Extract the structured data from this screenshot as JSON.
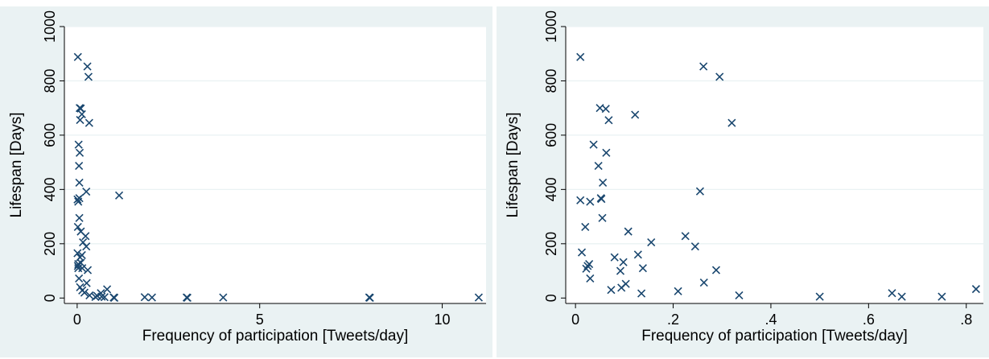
{
  "colors": {
    "background": "#eaf2f3",
    "plot": "#ffffff",
    "marker": "#1a476f",
    "grid": "#eaf2f3"
  },
  "chart_data": [
    {
      "type": "scatter",
      "marker": "x",
      "xlabel": "Frequency of participation [Tweets/day]",
      "ylabel": "Lifespan [Days]",
      "xlim": [
        -0.35,
        11.2
      ],
      "ylim": [
        -20,
        1000
      ],
      "xticks": [
        0,
        5,
        10
      ],
      "xtick_labels": [
        "0",
        "5",
        "10"
      ],
      "yticks": [
        0,
        200,
        400,
        600,
        800,
        1000
      ],
      "ytick_labels": [
        "0",
        "200",
        "400",
        "600",
        "800",
        "1000"
      ],
      "grid": true,
      "points": [
        {
          "x": 0.02,
          "y": 888
        },
        {
          "x": 0.28,
          "y": 853
        },
        {
          "x": 0.31,
          "y": 815
        },
        {
          "x": 0.07,
          "y": 700
        },
        {
          "x": 0.1,
          "y": 698
        },
        {
          "x": 0.13,
          "y": 677
        },
        {
          "x": 0.08,
          "y": 656
        },
        {
          "x": 0.33,
          "y": 645
        },
        {
          "x": 0.04,
          "y": 565
        },
        {
          "x": 0.07,
          "y": 535
        },
        {
          "x": 0.05,
          "y": 487
        },
        {
          "x": 0.06,
          "y": 425
        },
        {
          "x": 0.25,
          "y": 392
        },
        {
          "x": 1.15,
          "y": 378
        },
        {
          "x": 0.01,
          "y": 363
        },
        {
          "x": 0.06,
          "y": 368
        },
        {
          "x": 0.03,
          "y": 355
        },
        {
          "x": 0.06,
          "y": 295
        },
        {
          "x": 0.02,
          "y": 262
        },
        {
          "x": 0.1,
          "y": 245
        },
        {
          "x": 0.23,
          "y": 228
        },
        {
          "x": 0.16,
          "y": 205
        },
        {
          "x": 0.25,
          "y": 190
        },
        {
          "x": 0.01,
          "y": 165
        },
        {
          "x": 0.08,
          "y": 150
        },
        {
          "x": 0.13,
          "y": 158
        },
        {
          "x": 0.03,
          "y": 125
        },
        {
          "x": 0.02,
          "y": 118
        },
        {
          "x": 0.03,
          "y": 110
        },
        {
          "x": 0.14,
          "y": 110
        },
        {
          "x": 0.29,
          "y": 103
        },
        {
          "x": 0.1,
          "y": 130
        },
        {
          "x": 0.05,
          "y": 72
        },
        {
          "x": 0.26,
          "y": 55
        },
        {
          "x": 0.08,
          "y": 40
        },
        {
          "x": 0.14,
          "y": 28
        },
        {
          "x": 0.2,
          "y": 20
        },
        {
          "x": 0.34,
          "y": 10
        },
        {
          "x": 0.5,
          "y": 4
        },
        {
          "x": 0.65,
          "y": 18
        },
        {
          "x": 0.67,
          "y": 5
        },
        {
          "x": 0.75,
          "y": 3
        },
        {
          "x": 0.82,
          "y": 32
        },
        {
          "x": 0.55,
          "y": 8
        },
        {
          "x": 1.0,
          "y": 2
        },
        {
          "x": 1.02,
          "y": 1
        },
        {
          "x": 1.85,
          "y": 3
        },
        {
          "x": 2.05,
          "y": 2
        },
        {
          "x": 3.0,
          "y": 2
        },
        {
          "x": 3.02,
          "y": 1
        },
        {
          "x": 4.0,
          "y": 2
        },
        {
          "x": 8.0,
          "y": 2
        },
        {
          "x": 8.02,
          "y": 1
        },
        {
          "x": 11.0,
          "y": 2
        }
      ]
    },
    {
      "type": "scatter",
      "marker": "x",
      "xlabel": "Frequency of participation [Tweets/day]",
      "ylabel": "Lifespan [Days]",
      "xlim": [
        -0.02,
        0.835
      ],
      "ylim": [
        -20,
        1000
      ],
      "xticks": [
        0,
        0.2,
        0.4,
        0.6,
        0.8
      ],
      "xtick_labels": [
        "0",
        ".2",
        ".4",
        ".6",
        ".8"
      ],
      "yticks": [
        0,
        200,
        400,
        600,
        800,
        1000
      ],
      "ytick_labels": [
        "0",
        "200",
        "400",
        "600",
        "800",
        "1000"
      ],
      "grid": true,
      "points": [
        {
          "x": 0.01,
          "y": 888
        },
        {
          "x": 0.262,
          "y": 853
        },
        {
          "x": 0.295,
          "y": 815
        },
        {
          "x": 0.05,
          "y": 700
        },
        {
          "x": 0.062,
          "y": 697
        },
        {
          "x": 0.122,
          "y": 675
        },
        {
          "x": 0.068,
          "y": 655
        },
        {
          "x": 0.32,
          "y": 645
        },
        {
          "x": 0.037,
          "y": 565
        },
        {
          "x": 0.063,
          "y": 535
        },
        {
          "x": 0.047,
          "y": 487
        },
        {
          "x": 0.056,
          "y": 425
        },
        {
          "x": 0.255,
          "y": 393
        },
        {
          "x": 0.052,
          "y": 368
        },
        {
          "x": 0.053,
          "y": 365
        },
        {
          "x": 0.01,
          "y": 360
        },
        {
          "x": 0.03,
          "y": 355
        },
        {
          "x": 0.055,
          "y": 295
        },
        {
          "x": 0.02,
          "y": 262
        },
        {
          "x": 0.108,
          "y": 245
        },
        {
          "x": 0.225,
          "y": 228
        },
        {
          "x": 0.155,
          "y": 205
        },
        {
          "x": 0.245,
          "y": 190
        },
        {
          "x": 0.013,
          "y": 168
        },
        {
          "x": 0.128,
          "y": 160
        },
        {
          "x": 0.08,
          "y": 150
        },
        {
          "x": 0.098,
          "y": 132
        },
        {
          "x": 0.028,
          "y": 125
        },
        {
          "x": 0.025,
          "y": 118
        },
        {
          "x": 0.022,
          "y": 108
        },
        {
          "x": 0.138,
          "y": 110
        },
        {
          "x": 0.288,
          "y": 103
        },
        {
          "x": 0.092,
          "y": 100
        },
        {
          "x": 0.03,
          "y": 72
        },
        {
          "x": 0.263,
          "y": 57
        },
        {
          "x": 0.103,
          "y": 52
        },
        {
          "x": 0.094,
          "y": 38
        },
        {
          "x": 0.073,
          "y": 30
        },
        {
          "x": 0.21,
          "y": 25
        },
        {
          "x": 0.135,
          "y": 17
        },
        {
          "x": 0.335,
          "y": 10
        },
        {
          "x": 0.5,
          "y": 5
        },
        {
          "x": 0.648,
          "y": 18
        },
        {
          "x": 0.668,
          "y": 5
        },
        {
          "x": 0.75,
          "y": 5
        },
        {
          "x": 0.82,
          "y": 33
        }
      ]
    }
  ]
}
